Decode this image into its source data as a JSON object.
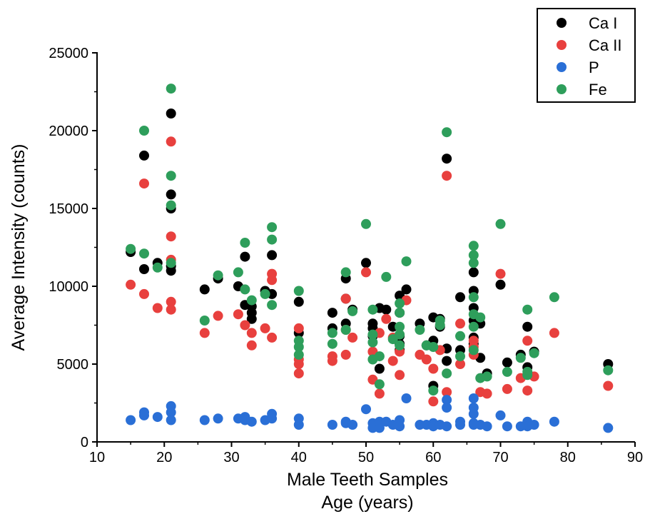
{
  "chart_data": {
    "type": "scatter",
    "title": "",
    "xlabel_line1": "Male Teeth Samples",
    "xlabel_line2": "Age (years)",
    "ylabel": "Average Intensity (counts)",
    "xlim": [
      10,
      90
    ],
    "ylim": [
      0,
      25000
    ],
    "xticks": [
      10,
      20,
      30,
      40,
      50,
      60,
      70,
      80,
      90
    ],
    "yticks": [
      0,
      5000,
      10000,
      15000,
      20000,
      25000
    ],
    "grid": false,
    "legend_position": "top-right",
    "series": [
      {
        "name": "Ca I",
        "color": "#000000",
        "points": [
          [
            15,
            12200
          ],
          [
            17,
            18400
          ],
          [
            17,
            11100
          ],
          [
            19,
            11500
          ],
          [
            21,
            21100
          ],
          [
            21,
            15900
          ],
          [
            21,
            15000
          ],
          [
            21,
            11300
          ],
          [
            21,
            11000
          ],
          [
            26,
            9800
          ],
          [
            28,
            10500
          ],
          [
            31,
            10000
          ],
          [
            32,
            11900
          ],
          [
            32,
            8800
          ],
          [
            33,
            8700
          ],
          [
            33,
            8300
          ],
          [
            33,
            7900
          ],
          [
            35,
            9700
          ],
          [
            36,
            12000
          ],
          [
            36,
            9500
          ],
          [
            40,
            9000
          ],
          [
            40,
            7000
          ],
          [
            45,
            8300
          ],
          [
            45,
            7300
          ],
          [
            47,
            10500
          ],
          [
            47,
            9200
          ],
          [
            47,
            7600
          ],
          [
            48,
            8500
          ],
          [
            50,
            11500
          ],
          [
            51,
            7600
          ],
          [
            51,
            7300
          ],
          [
            51,
            6800
          ],
          [
            52,
            8600
          ],
          [
            52,
            4700
          ],
          [
            53,
            8500
          ],
          [
            54,
            7400
          ],
          [
            55,
            9400
          ],
          [
            55,
            8300
          ],
          [
            55,
            6800
          ],
          [
            55,
            6300
          ],
          [
            55,
            5900
          ],
          [
            56,
            9800
          ],
          [
            58,
            7600
          ],
          [
            59,
            6200
          ],
          [
            60,
            8000
          ],
          [
            60,
            6500
          ],
          [
            60,
            3600
          ],
          [
            61,
            7900
          ],
          [
            61,
            7400
          ],
          [
            62,
            18200
          ],
          [
            62,
            6000
          ],
          [
            62,
            5200
          ],
          [
            64,
            9300
          ],
          [
            64,
            5900
          ],
          [
            66,
            10900
          ],
          [
            66,
            9700
          ],
          [
            66,
            8600
          ],
          [
            66,
            7800
          ],
          [
            66,
            6700
          ],
          [
            66,
            6300
          ],
          [
            67,
            7600
          ],
          [
            67,
            5400
          ],
          [
            68,
            4400
          ],
          [
            70,
            10100
          ],
          [
            71,
            5100
          ],
          [
            73,
            5600
          ],
          [
            74,
            7400
          ],
          [
            74,
            4800
          ],
          [
            75,
            5800
          ],
          [
            86,
            5000
          ]
        ]
      },
      {
        "name": "Ca II",
        "color": "#e8403e",
        "points": [
          [
            15,
            10100
          ],
          [
            17,
            16600
          ],
          [
            17,
            9500
          ],
          [
            19,
            8600
          ],
          [
            21,
            19300
          ],
          [
            21,
            13200
          ],
          [
            21,
            11700
          ],
          [
            21,
            9000
          ],
          [
            21,
            8500
          ],
          [
            26,
            7000
          ],
          [
            28,
            8100
          ],
          [
            31,
            8200
          ],
          [
            32,
            7500
          ],
          [
            33,
            7000
          ],
          [
            33,
            6200
          ],
          [
            35,
            7300
          ],
          [
            36,
            10800
          ],
          [
            36,
            10400
          ],
          [
            36,
            6700
          ],
          [
            40,
            7300
          ],
          [
            40,
            5300
          ],
          [
            40,
            5000
          ],
          [
            40,
            4400
          ],
          [
            45,
            5500
          ],
          [
            45,
            5200
          ],
          [
            47,
            9200
          ],
          [
            47,
            7200
          ],
          [
            47,
            5600
          ],
          [
            48,
            6700
          ],
          [
            50,
            10900
          ],
          [
            51,
            5800
          ],
          [
            51,
            4000
          ],
          [
            52,
            7000
          ],
          [
            52,
            3100
          ],
          [
            53,
            7900
          ],
          [
            54,
            6700
          ],
          [
            54,
            5200
          ],
          [
            55,
            5800
          ],
          [
            55,
            4300
          ],
          [
            56,
            9100
          ],
          [
            58,
            5600
          ],
          [
            59,
            5300
          ],
          [
            60,
            4700
          ],
          [
            60,
            2600
          ],
          [
            61,
            5900
          ],
          [
            62,
            17100
          ],
          [
            62,
            3200
          ],
          [
            64,
            7600
          ],
          [
            64,
            5000
          ],
          [
            66,
            6500
          ],
          [
            66,
            6100
          ],
          [
            66,
            5600
          ],
          [
            67,
            3200
          ],
          [
            68,
            3100
          ],
          [
            70,
            10800
          ],
          [
            71,
            3400
          ],
          [
            73,
            4100
          ],
          [
            74,
            6500
          ],
          [
            74,
            3300
          ],
          [
            75,
            4200
          ],
          [
            78,
            7000
          ],
          [
            86,
            3600
          ]
        ]
      },
      {
        "name": "P",
        "color": "#2a6fd6",
        "points": [
          [
            15,
            1400
          ],
          [
            17,
            1900
          ],
          [
            17,
            1700
          ],
          [
            19,
            1600
          ],
          [
            21,
            2300
          ],
          [
            21,
            1900
          ],
          [
            21,
            1400
          ],
          [
            26,
            1400
          ],
          [
            28,
            1500
          ],
          [
            31,
            1500
          ],
          [
            32,
            1600
          ],
          [
            32,
            1400
          ],
          [
            33,
            1300
          ],
          [
            35,
            1400
          ],
          [
            36,
            1800
          ],
          [
            36,
            1500
          ],
          [
            40,
            1500
          ],
          [
            40,
            1100
          ],
          [
            45,
            1100
          ],
          [
            47,
            1300
          ],
          [
            47,
            1200
          ],
          [
            48,
            1100
          ],
          [
            50,
            2100
          ],
          [
            51,
            1200
          ],
          [
            51,
            900
          ],
          [
            52,
            1300
          ],
          [
            52,
            900
          ],
          [
            53,
            1300
          ],
          [
            54,
            1100
          ],
          [
            55,
            1400
          ],
          [
            55,
            1000
          ],
          [
            56,
            2800
          ],
          [
            58,
            1100
          ],
          [
            59,
            1100
          ],
          [
            60,
            1200
          ],
          [
            60,
            1000
          ],
          [
            61,
            1100
          ],
          [
            62,
            2700
          ],
          [
            62,
            2200
          ],
          [
            62,
            1000
          ],
          [
            64,
            1300
          ],
          [
            64,
            1100
          ],
          [
            66,
            2800
          ],
          [
            66,
            2200
          ],
          [
            66,
            1800
          ],
          [
            66,
            1200
          ],
          [
            66,
            1100
          ],
          [
            67,
            1100
          ],
          [
            68,
            1000
          ],
          [
            70,
            1700
          ],
          [
            71,
            1000
          ],
          [
            73,
            1000
          ],
          [
            74,
            1300
          ],
          [
            74,
            1000
          ],
          [
            75,
            1100
          ],
          [
            78,
            1300
          ],
          [
            86,
            900
          ]
        ]
      },
      {
        "name": "Fe",
        "color": "#2e9e5b",
        "points": [
          [
            15,
            12400
          ],
          [
            17,
            20000
          ],
          [
            17,
            12100
          ],
          [
            19,
            11200
          ],
          [
            21,
            22700
          ],
          [
            21,
            17100
          ],
          [
            21,
            15200
          ],
          [
            21,
            11500
          ],
          [
            26,
            7800
          ],
          [
            28,
            10700
          ],
          [
            31,
            10900
          ],
          [
            32,
            12800
          ],
          [
            32,
            9800
          ],
          [
            33,
            9100
          ],
          [
            35,
            9500
          ],
          [
            36,
            13800
          ],
          [
            36,
            13000
          ],
          [
            36,
            8800
          ],
          [
            40,
            9700
          ],
          [
            40,
            6500
          ],
          [
            40,
            6100
          ],
          [
            40,
            5600
          ],
          [
            45,
            7000
          ],
          [
            45,
            6300
          ],
          [
            47,
            10900
          ],
          [
            47,
            7200
          ],
          [
            48,
            8400
          ],
          [
            50,
            14000
          ],
          [
            51,
            8500
          ],
          [
            51,
            6900
          ],
          [
            51,
            6400
          ],
          [
            51,
            5300
          ],
          [
            52,
            5500
          ],
          [
            52,
            3700
          ],
          [
            53,
            10600
          ],
          [
            54,
            6600
          ],
          [
            55,
            8900
          ],
          [
            55,
            8300
          ],
          [
            55,
            7400
          ],
          [
            55,
            6900
          ],
          [
            55,
            6200
          ],
          [
            56,
            11600
          ],
          [
            58,
            7200
          ],
          [
            59,
            6200
          ],
          [
            60,
            6100
          ],
          [
            60,
            3300
          ],
          [
            61,
            7800
          ],
          [
            61,
            7500
          ],
          [
            62,
            19900
          ],
          [
            62,
            4400
          ],
          [
            64,
            6800
          ],
          [
            64,
            5500
          ],
          [
            66,
            12600
          ],
          [
            66,
            12000
          ],
          [
            66,
            11500
          ],
          [
            66,
            9300
          ],
          [
            66,
            8200
          ],
          [
            66,
            7400
          ],
          [
            66,
            5900
          ],
          [
            67,
            8000
          ],
          [
            67,
            4100
          ],
          [
            68,
            4200
          ],
          [
            70,
            14000
          ],
          [
            71,
            4500
          ],
          [
            73,
            5400
          ],
          [
            74,
            8500
          ],
          [
            74,
            4500
          ],
          [
            74,
            4300
          ],
          [
            75,
            5700
          ],
          [
            78,
            9300
          ],
          [
            86,
            4600
          ]
        ]
      }
    ]
  }
}
